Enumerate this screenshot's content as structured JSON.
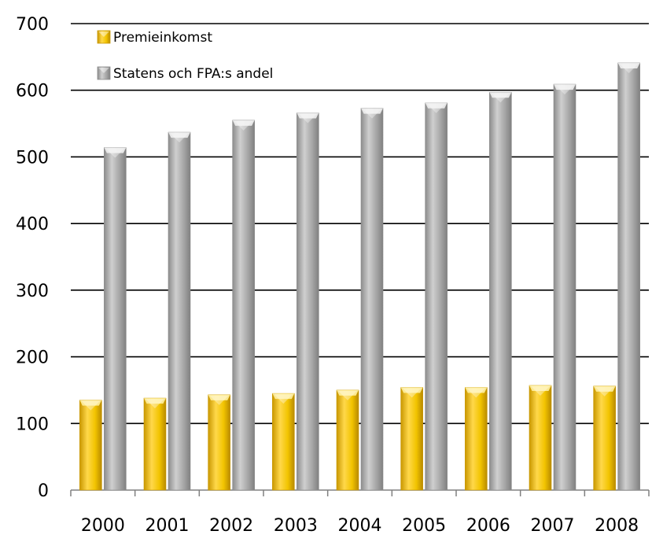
{
  "chart_data": {
    "type": "bar",
    "categories": [
      "2000",
      "2001",
      "2002",
      "2003",
      "2004",
      "2005",
      "2006",
      "2007",
      "2008"
    ],
    "series": [
      {
        "name": "Premieinkomst",
        "values": [
          135,
          138,
          143,
          145,
          150,
          154,
          154,
          157,
          156
        ],
        "color": "#F2C400"
      },
      {
        "name": "Statens och FPA:s andel",
        "values": [
          514,
          537,
          555,
          566,
          573,
          581,
          597,
          609,
          641
        ],
        "color": "#A6A6A6"
      }
    ],
    "ylim": [
      0,
      700
    ],
    "yticks": [
      0,
      100,
      200,
      300,
      400,
      500,
      600,
      700
    ],
    "grid": "horizontal",
    "legend_position": "top-left"
  }
}
